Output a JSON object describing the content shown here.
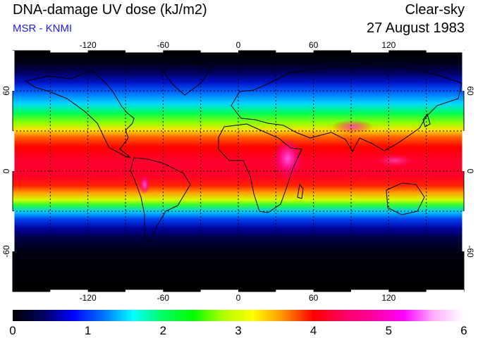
{
  "header": {
    "title": "DNA-damage UV dose (kJ/m2)",
    "subtitle": "MSR - KNMI",
    "condition": "Clear-sky",
    "date": "27 August 1983"
  },
  "map": {
    "lon_labels": [
      "-120",
      "-60",
      "0",
      "60",
      "120"
    ],
    "lat_labels": [
      "60",
      "0",
      "-60"
    ],
    "lon_range": [
      -180,
      180
    ],
    "lat_range": [
      -90,
      90
    ],
    "graticule_spacing_deg": 30
  },
  "colorbar": {
    "ticks": [
      "0",
      "1",
      "2",
      "3",
      "4",
      "5",
      "6"
    ],
    "range": [
      0,
      6
    ],
    "colors": [
      "#000000",
      "#000060",
      "#0000ff",
      "#0070ff",
      "#00ffff",
      "#00ff60",
      "#00ff00",
      "#b0ff00",
      "#ffff00",
      "#ff9000",
      "#ff0000",
      "#ff0060",
      "#ff00a0",
      "#ff00ff",
      "#ffb0ff",
      "#ffffff"
    ]
  }
}
